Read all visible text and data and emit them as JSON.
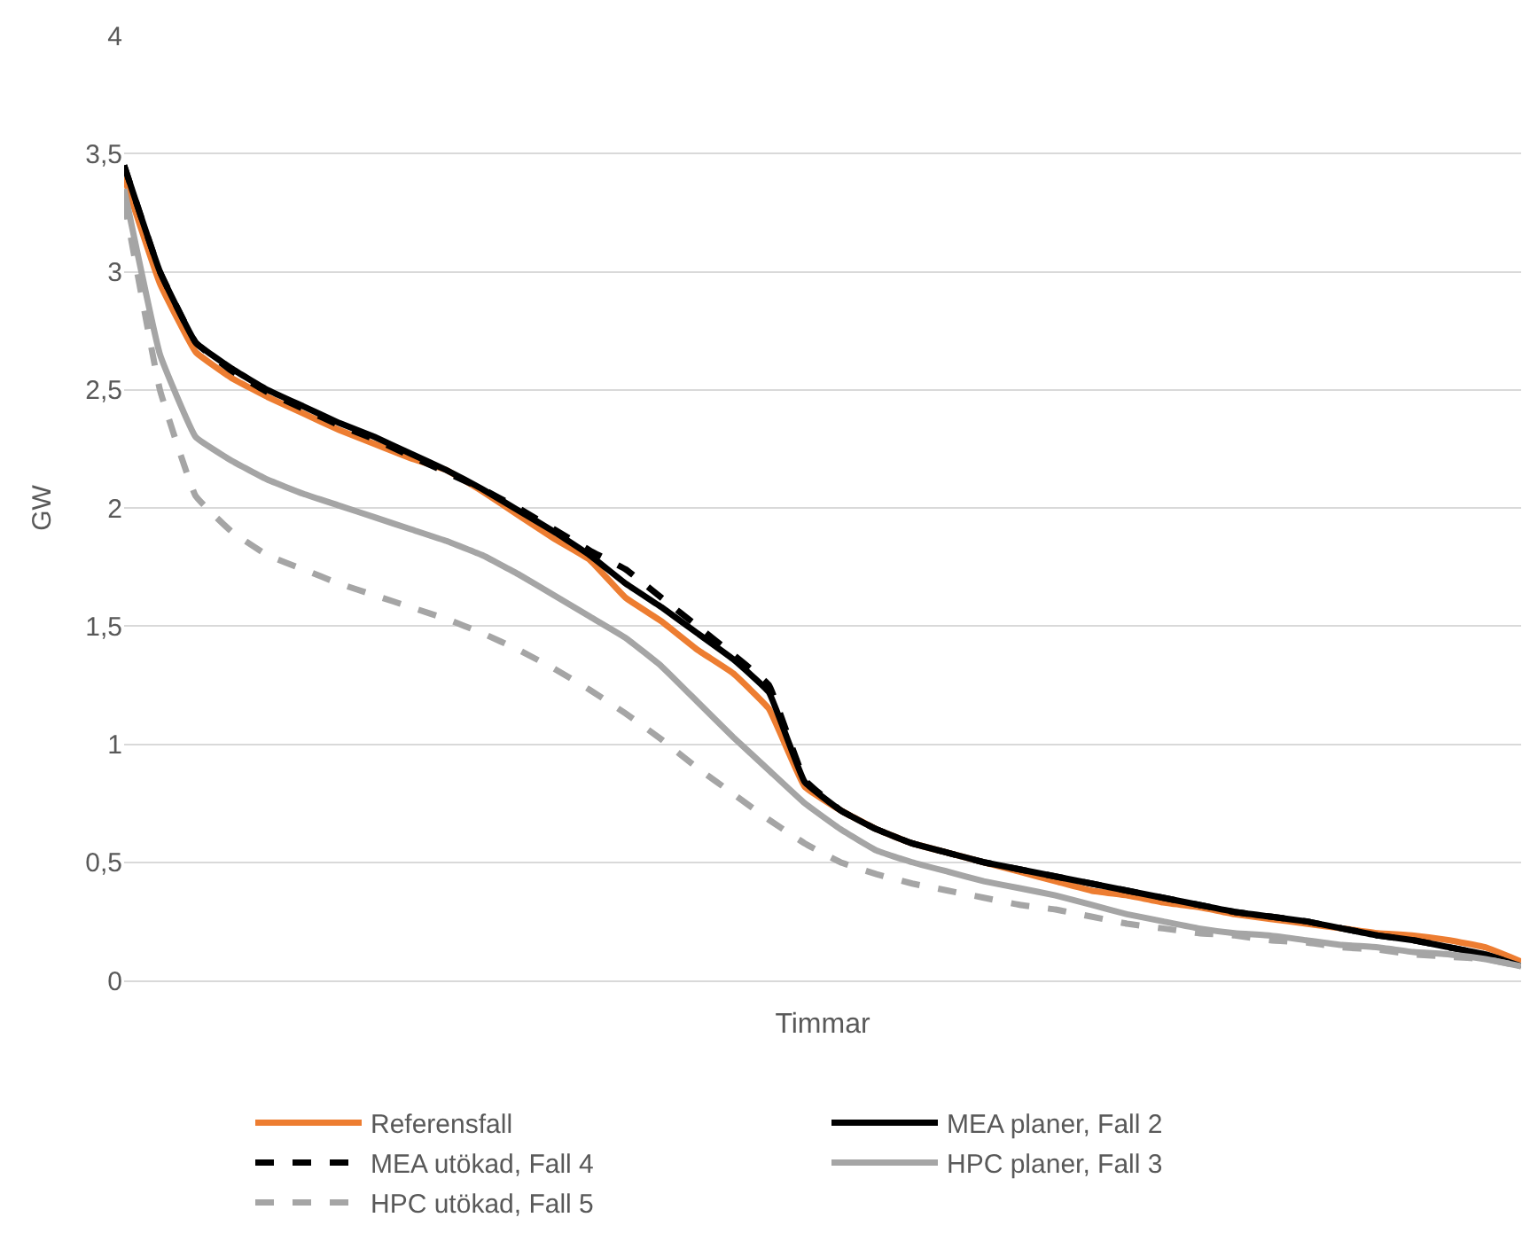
{
  "chart_data": {
    "type": "line",
    "xlabel": "Timmar",
    "ylabel": "GW",
    "categories": [
      null,
      null,
      null,
      null,
      null,
      null,
      null,
      null,
      null,
      null,
      null,
      null,
      null,
      null,
      null,
      null,
      null,
      null,
      null,
      null,
      null,
      null,
      null,
      null,
      null,
      null,
      null,
      null,
      null,
      null,
      null,
      null,
      null,
      null,
      null,
      null,
      null,
      null,
      null,
      null
    ],
    "ylim": [
      0,
      4
    ],
    "yticks": [
      0,
      {
        "value": 0.5,
        "label": "0,5"
      },
      1,
      {
        "value": 1.5,
        "label": "1,5"
      },
      2,
      {
        "value": 2.5,
        "label": "2,5"
      },
      3,
      {
        "value": 3.5,
        "label": "3,5"
      },
      4
    ],
    "grid": "y",
    "legend": "bottom",
    "marker": "none",
    "series": [
      {
        "name": "Referensfall",
        "color": "#ed7d31",
        "line_style": "solid",
        "values": [
          3.4,
          2.95,
          2.66,
          2.55,
          2.47,
          2.4,
          2.33,
          2.27,
          2.21,
          2.16,
          2.07,
          1.97,
          1.87,
          1.78,
          1.62,
          1.52,
          1.4,
          1.3,
          1.15,
          0.82,
          0.72,
          0.64,
          0.58,
          0.54,
          0.5,
          0.46,
          0.42,
          0.38,
          0.36,
          0.33,
          0.31,
          0.28,
          0.26,
          0.24,
          0.22,
          0.2,
          0.19,
          0.17,
          0.14,
          0.08
        ]
      },
      {
        "name": "MEA planer, Fall 2",
        "color": "#000000",
        "line_style": "solid",
        "values": [
          3.45,
          3.0,
          2.7,
          2.59,
          2.5,
          2.43,
          2.36,
          2.3,
          2.23,
          2.16,
          2.08,
          1.99,
          1.9,
          1.8,
          1.68,
          1.58,
          1.47,
          1.36,
          1.22,
          0.84,
          0.72,
          0.64,
          0.58,
          0.54,
          0.5,
          0.47,
          0.44,
          0.41,
          0.38,
          0.35,
          0.32,
          0.29,
          0.27,
          0.25,
          0.22,
          0.19,
          0.17,
          0.14,
          0.11,
          0.06
        ]
      },
      {
        "name": "MEA utökad, Fall 4",
        "color": "#000000",
        "line_style": "dashed",
        "values": [
          3.45,
          3.0,
          2.7,
          2.58,
          2.49,
          2.42,
          2.35,
          2.29,
          2.22,
          2.15,
          2.08,
          2.0,
          1.91,
          1.82,
          1.74,
          1.62,
          1.5,
          1.38,
          1.25,
          0.85,
          0.72,
          0.64,
          0.58,
          0.54,
          0.5,
          0.47,
          0.44,
          0.41,
          0.38,
          0.35,
          0.32,
          0.29,
          0.27,
          0.25,
          0.22,
          0.19,
          0.17,
          0.14,
          0.11,
          0.06
        ]
      },
      {
        "name": "HPC planer, Fall 3",
        "color": "#a5a5a5",
        "line_style": "solid",
        "values": [
          3.35,
          2.65,
          2.3,
          2.2,
          2.12,
          2.06,
          2.01,
          1.96,
          1.91,
          1.86,
          1.8,
          1.72,
          1.63,
          1.54,
          1.45,
          1.33,
          1.18,
          1.03,
          0.89,
          0.75,
          0.64,
          0.55,
          0.5,
          0.46,
          0.42,
          0.39,
          0.36,
          0.32,
          0.28,
          0.25,
          0.22,
          0.2,
          0.19,
          0.17,
          0.15,
          0.14,
          0.12,
          0.11,
          0.09,
          0.06
        ]
      },
      {
        "name": "HPC utökad, Fall 5",
        "color": "#a5a5a5",
        "line_style": "dashed",
        "values": [
          3.3,
          2.5,
          2.05,
          1.9,
          1.8,
          1.74,
          1.68,
          1.63,
          1.58,
          1.53,
          1.47,
          1.4,
          1.32,
          1.23,
          1.13,
          1.02,
          0.9,
          0.79,
          0.68,
          0.58,
          0.5,
          0.45,
          0.41,
          0.38,
          0.35,
          0.32,
          0.3,
          0.27,
          0.24,
          0.22,
          0.2,
          0.19,
          0.17,
          0.16,
          0.14,
          0.13,
          0.11,
          0.1,
          0.09,
          0.06
        ]
      }
    ]
  }
}
